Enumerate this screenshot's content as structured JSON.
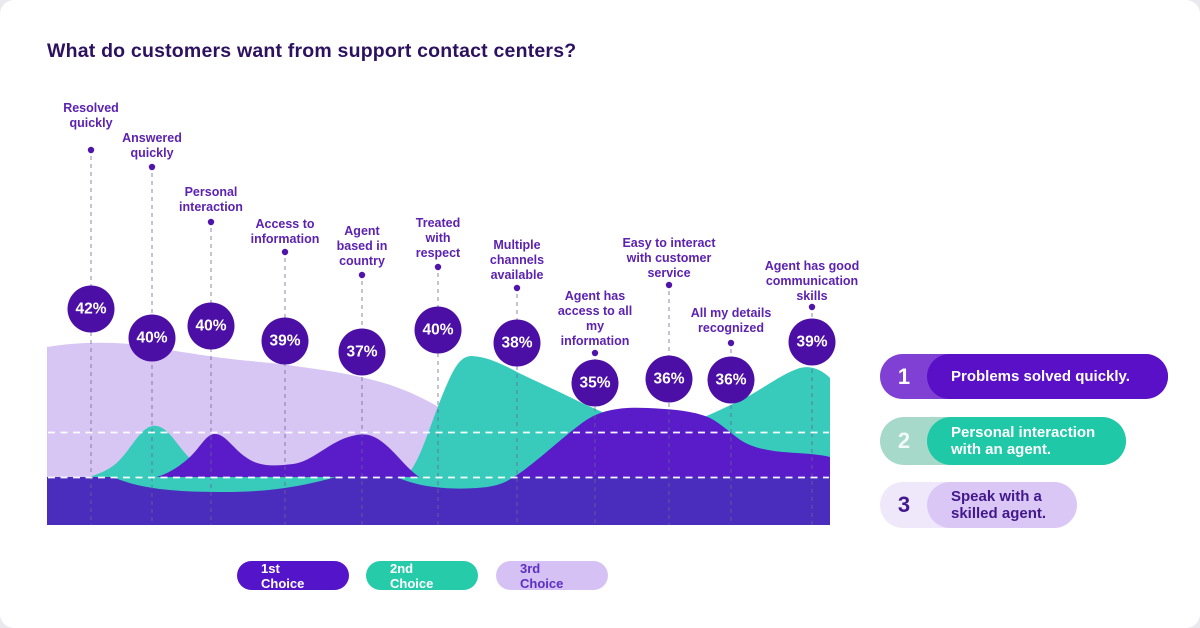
{
  "title": "What do customers want from support contact centers?",
  "chart_data": {
    "type": "area",
    "title": "What do customers want from support contact centers?",
    "value_unit": "%",
    "points": [
      {
        "label": "Resolved quickly",
        "value": 42
      },
      {
        "label": "Answered quickly",
        "value": 40
      },
      {
        "label": "Personal interaction",
        "value": 40
      },
      {
        "label": "Access to information",
        "value": 39
      },
      {
        "label": "Agent based in country",
        "value": 37
      },
      {
        "label": "Treated with respect",
        "value": 40
      },
      {
        "label": "Multiple channels available",
        "value": 38
      },
      {
        "label": "Agent has access to all my information",
        "value": 35
      },
      {
        "label": "Easy to interact with customer service",
        "value": 36
      },
      {
        "label": "All my details recognized",
        "value": 36
      },
      {
        "label": "Agent has good communication skills",
        "value": 39
      }
    ],
    "series_legend": [
      "1st Choice",
      "2nd Choice",
      "3rd Choice"
    ],
    "layout_hints": {
      "grid": "two horizontal white dashed reference lines",
      "guides": "vertical dashed line from each category dot to chart base",
      "legend_position": "bottom"
    }
  },
  "choices": [
    {
      "label": "1st Choice"
    },
    {
      "label": "2nd Choice"
    },
    {
      "label": "3rd Choice"
    }
  ],
  "ranking": [
    {
      "rank": "1",
      "text": "Problems solved quickly."
    },
    {
      "rank": "2",
      "text": "Personal interaction with an agent."
    },
    {
      "rank": "3",
      "text": "Speak with a skilled agent."
    }
  ],
  "colors": {
    "title_text": "#2b1160",
    "label_text": "#5c22b0",
    "bubble_fill": "#4b0fa5",
    "area_third_choice_lavender": "#d7c5f4",
    "area_second_choice_teal": "#38cbbc",
    "area_first_choice_purple": "#5a1cc8",
    "base_band_indigo": "#4a2dbd",
    "pill_first": "#5414c9",
    "pill_second": "#26cbaa",
    "pill_third": "#d6c1f4",
    "rank1_inner": "#5a10c6",
    "rank2_inner": "#1fc8a7",
    "rank3_inner": "#dac7f6"
  }
}
